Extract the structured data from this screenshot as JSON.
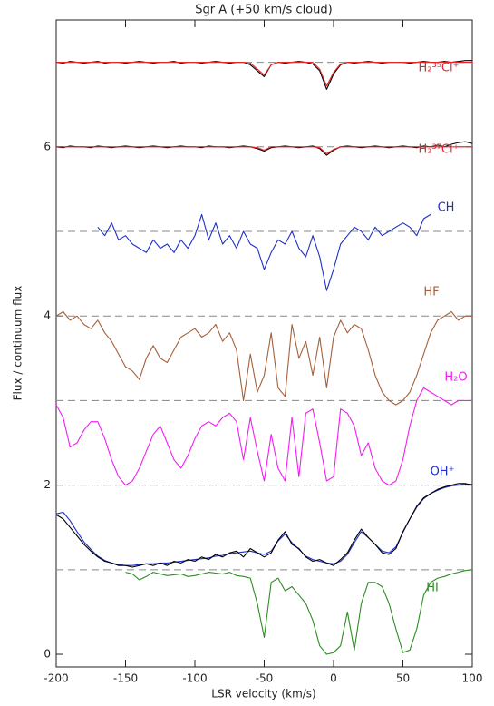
{
  "chart_data": {
    "type": "line",
    "title": "Sgr A (+50 km/s cloud)",
    "xlabel": "LSR velocity (km/s)",
    "ylabel": "Flux / continuum flux",
    "xlim": [
      -200,
      100
    ],
    "ylim": [
      -0.15,
      7.5
    ],
    "xticks": [
      -200,
      -150,
      -100,
      -50,
      0,
      50,
      100
    ],
    "yticks": [
      0,
      2,
      4,
      6
    ],
    "baselines": [
      1,
      2,
      3,
      4,
      5,
      6,
      7
    ],
    "x": [
      -200,
      -195,
      -190,
      -185,
      -180,
      -175,
      -170,
      -165,
      -160,
      -155,
      -150,
      -145,
      -140,
      -135,
      -130,
      -125,
      -120,
      -115,
      -110,
      -105,
      -100,
      -95,
      -90,
      -85,
      -80,
      -75,
      -70,
      -65,
      -60,
      -55,
      -50,
      -45,
      -40,
      -35,
      -30,
      -25,
      -20,
      -15,
      -10,
      -5,
      0,
      5,
      10,
      15,
      20,
      25,
      30,
      35,
      40,
      45,
      50,
      55,
      60,
      65,
      70,
      75,
      80,
      85,
      90,
      95,
      100
    ],
    "series": [
      {
        "color": "#000000",
        "values": [
          7.0,
          6.99,
          7.01,
          7.0,
          6.99,
          7.0,
          7.01,
          6.99,
          7.0,
          7.0,
          6.99,
          7.0,
          7.01,
          7.0,
          6.99,
          7.0,
          7.0,
          7.01,
          6.99,
          7.0,
          7.0,
          6.99,
          7.0,
          7.01,
          7.0,
          6.99,
          7.0,
          7.0,
          6.97,
          6.9,
          6.83,
          6.97,
          7.0,
          6.99,
          7.0,
          7.01,
          7.0,
          6.98,
          6.9,
          6.68,
          6.86,
          6.97,
          7.0,
          6.99,
          7.0,
          7.01,
          7.0,
          6.99,
          7.0,
          7.0,
          7.0,
          6.99,
          7.0,
          7.01,
          7.0,
          7.0,
          7.01,
          7.0,
          7.01,
          7.02,
          7.02
        ]
      },
      {
        "name": "H₂³⁵Cl⁺",
        "color": "#e8262b",
        "values": [
          7.0,
          7.0,
          7.0,
          7.0,
          7.0,
          7.0,
          7.0,
          7.0,
          7.0,
          7.0,
          7.0,
          7.0,
          7.0,
          7.0,
          7.0,
          7.0,
          7.0,
          7.0,
          7.0,
          7.0,
          7.0,
          7.0,
          7.0,
          7.0,
          7.0,
          7.0,
          7.0,
          7.0,
          6.99,
          6.92,
          6.85,
          6.97,
          7.0,
          7.0,
          7.0,
          7.0,
          7.0,
          7.0,
          6.92,
          6.72,
          6.88,
          6.98,
          7.0,
          7.0,
          7.0,
          7.0,
          7.0,
          7.0,
          7.0,
          7.0,
          7.0,
          7.0,
          7.0,
          7.0,
          7.0,
          7.0,
          7.0,
          7.0,
          7.0,
          7.0,
          7.0
        ]
      },
      {
        "color": "#000000",
        "values": [
          6.0,
          5.99,
          6.01,
          6.0,
          6.0,
          5.99,
          6.01,
          6.0,
          5.99,
          6.0,
          6.01,
          6.0,
          5.99,
          6.0,
          6.01,
          6.0,
          5.99,
          6.0,
          6.01,
          6.0,
          6.0,
          5.99,
          6.01,
          6.0,
          6.0,
          5.99,
          6.0,
          6.01,
          6.0,
          5.98,
          5.95,
          5.99,
          6.0,
          6.01,
          6.0,
          5.99,
          6.0,
          6.01,
          5.98,
          5.9,
          5.96,
          6.0,
          6.01,
          6.0,
          5.99,
          6.0,
          6.01,
          6.0,
          5.99,
          6.0,
          6.01,
          6.0,
          5.99,
          6.01,
          6.0,
          6.02,
          6.0,
          6.03,
          6.05,
          6.06,
          6.04
        ]
      },
      {
        "name": "H₂³⁷Cl⁺",
        "color": "#e8262b",
        "values": [
          6.0,
          6.0,
          6.0,
          6.0,
          6.0,
          6.0,
          6.0,
          6.0,
          6.0,
          6.0,
          6.0,
          6.0,
          6.0,
          6.0,
          6.0,
          6.0,
          6.0,
          6.0,
          6.0,
          6.0,
          6.0,
          6.0,
          6.0,
          6.0,
          6.0,
          6.0,
          6.0,
          6.0,
          6.0,
          5.99,
          5.96,
          6.0,
          6.0,
          6.0,
          6.0,
          6.0,
          6.0,
          6.0,
          5.99,
          5.92,
          5.97,
          6.0,
          6.0,
          6.0,
          6.0,
          6.0,
          6.0,
          6.0,
          6.0,
          6.0,
          6.0,
          6.0,
          6.0,
          6.0,
          6.0,
          6.0,
          6.0,
          6.0,
          6.0,
          6.0,
          6.0
        ]
      },
      {
        "name": "CH",
        "color": "#1f2fc8",
        "values": [
          null,
          null,
          null,
          null,
          null,
          null,
          5.05,
          4.95,
          5.1,
          4.9,
          4.95,
          4.85,
          4.8,
          4.75,
          4.9,
          4.8,
          4.85,
          4.75,
          4.9,
          4.8,
          4.95,
          5.2,
          4.9,
          5.1,
          4.85,
          4.95,
          4.8,
          5.0,
          4.85,
          4.8,
          4.55,
          4.75,
          4.9,
          4.85,
          5.0,
          4.8,
          4.7,
          4.95,
          4.7,
          4.3,
          4.55,
          4.85,
          4.95,
          5.05,
          5.0,
          4.9,
          5.05,
          4.95,
          5.0,
          5.05,
          5.1,
          5.05,
          4.95,
          5.15,
          5.2,
          null,
          null,
          null,
          null,
          null,
          null
        ]
      },
      {
        "name": "HF",
        "color": "#a5603a",
        "values": [
          4.0,
          4.05,
          3.95,
          4.0,
          3.9,
          3.85,
          3.95,
          3.8,
          3.7,
          3.55,
          3.4,
          3.35,
          3.25,
          3.5,
          3.65,
          3.5,
          3.45,
          3.6,
          3.75,
          3.8,
          3.85,
          3.75,
          3.8,
          3.9,
          3.7,
          3.8,
          3.6,
          3.0,
          3.55,
          3.1,
          3.3,
          3.8,
          3.15,
          3.05,
          3.9,
          3.5,
          3.7,
          3.3,
          3.75,
          3.15,
          3.75,
          3.95,
          3.8,
          3.9,
          3.85,
          3.6,
          3.3,
          3.1,
          3.0,
          2.95,
          3.0,
          3.1,
          3.3,
          3.55,
          3.8,
          3.95,
          4.0,
          4.05,
          3.95,
          4.0,
          4.0
        ]
      },
      {
        "name": "H₂O",
        "color": "#f21df2",
        "values": [
          2.95,
          2.8,
          2.45,
          2.5,
          2.65,
          2.75,
          2.75,
          2.55,
          2.3,
          2.1,
          2.0,
          2.05,
          2.2,
          2.4,
          2.6,
          2.7,
          2.5,
          2.3,
          2.2,
          2.35,
          2.55,
          2.7,
          2.75,
          2.7,
          2.8,
          2.85,
          2.75,
          2.3,
          2.8,
          2.4,
          2.05,
          2.6,
          2.2,
          2.05,
          2.8,
          2.1,
          2.85,
          2.9,
          2.5,
          2.05,
          2.1,
          2.9,
          2.85,
          2.7,
          2.35,
          2.5,
          2.2,
          2.05,
          2.0,
          2.05,
          2.3,
          2.7,
          3.0,
          3.15,
          3.1,
          3.05,
          3.0,
          2.95,
          3.0,
          3.0,
          3.0
        ]
      },
      {
        "name": "OH⁺",
        "color": "#1f2fc8",
        "values": [
          1.66,
          1.68,
          1.58,
          1.45,
          1.33,
          1.24,
          1.16,
          1.11,
          1.08,
          1.06,
          1.05,
          1.05,
          1.06,
          1.07,
          1.07,
          1.08,
          1.08,
          1.09,
          1.1,
          1.11,
          1.12,
          1.13,
          1.14,
          1.16,
          1.17,
          1.19,
          1.2,
          1.21,
          1.22,
          1.2,
          1.18,
          1.22,
          1.34,
          1.42,
          1.32,
          1.24,
          1.16,
          1.12,
          1.1,
          1.08,
          1.07,
          1.1,
          1.18,
          1.32,
          1.45,
          1.38,
          1.3,
          1.22,
          1.2,
          1.27,
          1.44,
          1.6,
          1.74,
          1.84,
          1.9,
          1.94,
          1.97,
          1.99,
          2.0,
          2.01,
          2.01
        ]
      },
      {
        "color": "#000000",
        "values": [
          1.65,
          1.6,
          1.5,
          1.4,
          1.3,
          1.22,
          1.15,
          1.1,
          1.08,
          1.05,
          1.05,
          1.03,
          1.05,
          1.07,
          1.05,
          1.08,
          1.05,
          1.1,
          1.08,
          1.12,
          1.1,
          1.15,
          1.12,
          1.18,
          1.15,
          1.2,
          1.22,
          1.15,
          1.25,
          1.2,
          1.15,
          1.2,
          1.35,
          1.45,
          1.3,
          1.25,
          1.15,
          1.1,
          1.12,
          1.08,
          1.05,
          1.12,
          1.2,
          1.35,
          1.48,
          1.38,
          1.3,
          1.2,
          1.18,
          1.25,
          1.45,
          1.6,
          1.75,
          1.85,
          1.9,
          1.95,
          1.98,
          2.0,
          2.02,
          2.02,
          2.0
        ]
      },
      {
        "name": "HI",
        "color": "#2e8b23",
        "values": [
          null,
          null,
          null,
          null,
          null,
          null,
          null,
          null,
          null,
          null,
          0.97,
          0.95,
          0.88,
          0.92,
          0.97,
          0.95,
          0.93,
          0.94,
          0.95,
          0.92,
          0.93,
          0.95,
          0.97,
          0.96,
          0.95,
          0.97,
          0.93,
          0.92,
          0.9,
          0.6,
          0.2,
          0.85,
          0.9,
          0.75,
          0.8,
          0.7,
          0.6,
          0.4,
          0.1,
          0.0,
          0.02,
          0.1,
          0.5,
          0.05,
          0.6,
          0.85,
          0.85,
          0.8,
          0.6,
          0.3,
          0.02,
          0.05,
          0.3,
          0.7,
          0.85,
          0.9,
          0.92,
          0.95,
          0.97,
          0.99,
          1.0
        ]
      }
    ]
  }
}
